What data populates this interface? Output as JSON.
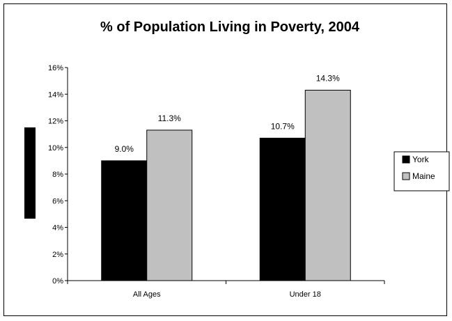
{
  "chart_data": {
    "type": "bar",
    "title": "% of Population Living in Poverty, 2004",
    "xlabel": "",
    "ylabel": "",
    "categories": [
      "All Ages",
      "Under 18"
    ],
    "series": [
      {
        "name": "York",
        "values": [
          9.0,
          10.7
        ],
        "labels": [
          "9.0%",
          "10.7%"
        ],
        "color": "#000000"
      },
      {
        "name": "Maine",
        "values": [
          11.3,
          14.3
        ],
        "labels": [
          "11.3%",
          "14.3%"
        ],
        "color": "#c0c0c0"
      }
    ],
    "ylim": [
      0,
      16
    ],
    "yticks": [
      0,
      2,
      4,
      6,
      8,
      10,
      12,
      14,
      16
    ],
    "ytick_labels": [
      "0%",
      "2%",
      "4%",
      "6%",
      "8%",
      "10%",
      "12%",
      "14%",
      "16%"
    ],
    "grid": false,
    "legend_position": "right"
  }
}
